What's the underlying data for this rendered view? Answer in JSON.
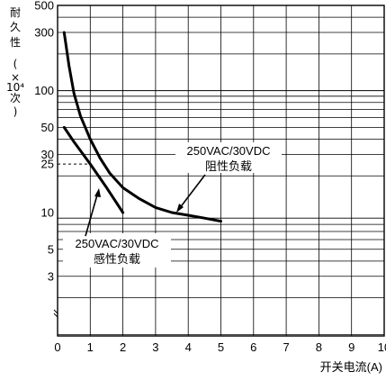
{
  "chart_data": {
    "type": "line",
    "xlabel": "开关电流(A)",
    "ylabel": [
      "耐",
      "久",
      "性",
      "(",
      "×",
      "10⁴",
      "次",
      ")"
    ],
    "x_ticks": [
      "0",
      "1",
      "2",
      "3",
      "4",
      "5",
      "6",
      "7",
      "8",
      "9",
      "10"
    ],
    "y_ticks": [
      "500",
      "300",
      "100",
      "50",
      "30",
      "25",
      "10",
      "5",
      "3"
    ],
    "xlim": [
      0,
      10
    ],
    "y_scale": "log",
    "ylim": [
      1,
      500
    ],
    "grid": true,
    "series": [
      {
        "name": "250VAC/30VDC 阻性负载",
        "x": [
          0.2,
          0.35,
          0.5,
          0.7,
          1.0,
          1.3,
          1.6,
          2.0,
          2.5,
          3.0,
          3.5,
          4.0,
          4.5,
          5.0
        ],
        "y": [
          300,
          160,
          95,
          62,
          40,
          28,
          21,
          16,
          13,
          11,
          10,
          9.5,
          9,
          8.5
        ]
      },
      {
        "name": "250VAC/30VDC 感性负载",
        "x": [
          0.2,
          0.5,
          1.0,
          1.5,
          2.0
        ],
        "y": [
          50,
          38,
          25,
          16,
          10
        ]
      }
    ],
    "annotations": [
      {
        "lines": [
          "250VAC/30VDC",
          "阻性负载"
        ],
        "points_to": "阻性负载 curve near x=3.5"
      },
      {
        "lines": [
          "250VAC/30VDC",
          "感性负载"
        ],
        "points_to": "感性负载 curve near x=1.2"
      }
    ],
    "reference_line": {
      "y": 25,
      "label": "25",
      "style": "dashed"
    }
  }
}
